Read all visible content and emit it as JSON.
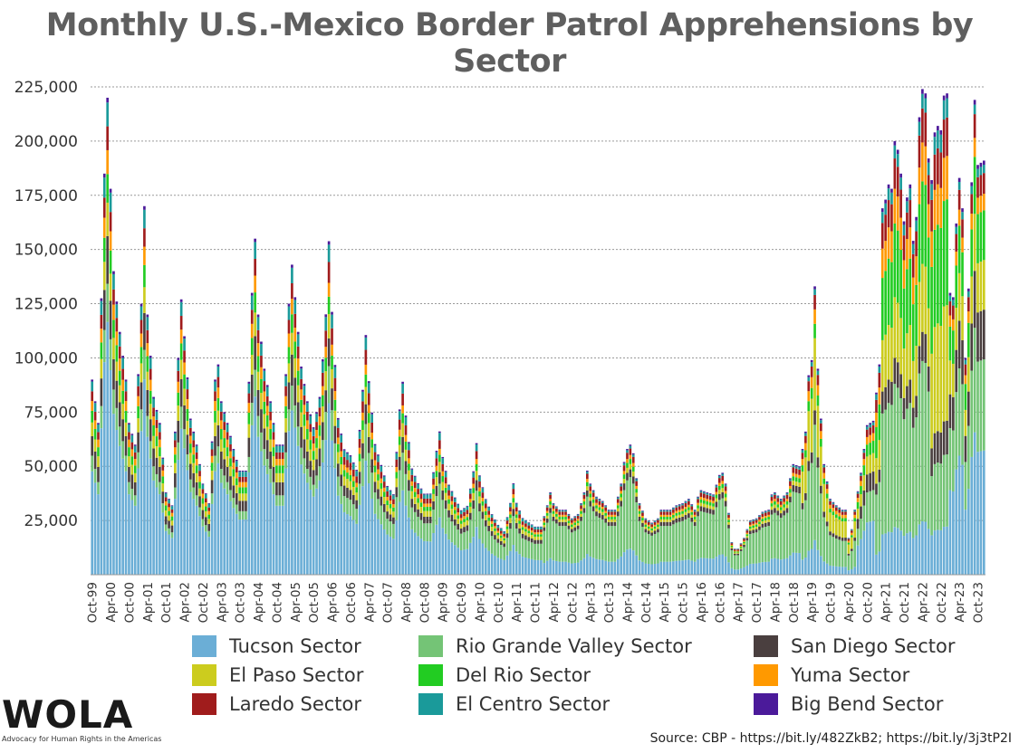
{
  "title": "Monthly U.S.-Mexico Border Patrol Apprehensions by Sector",
  "source": "Source: CBP - https://bit.ly/482ZkB2; https://bit.ly/3j3tP2I",
  "logo": {
    "text": "WOLA",
    "subtitle": "Advocacy for Human Rights in the Americas"
  },
  "chart_data": {
    "type": "bar",
    "stacked": true,
    "ylim": [
      0,
      225000
    ],
    "yticks": [
      25000,
      50000,
      75000,
      100000,
      125000,
      150000,
      175000,
      200000,
      225000
    ],
    "ytick_labels": [
      "25,000",
      "50,000",
      "75,000",
      "100,000",
      "125,000",
      "150,000",
      "175,000",
      "200,000",
      "225,000"
    ],
    "grid": true,
    "legend_position": "bottom",
    "x_start": "Oct-99",
    "x_end": "Dec-23",
    "xtick_labels": [
      "Oct-99",
      "Apr-00",
      "Oct-00",
      "Apr-01",
      "Oct-01",
      "Apr-02",
      "Oct-02",
      "Apr-03",
      "Oct-03",
      "Apr-04",
      "Oct-04",
      "Apr-05",
      "Oct-05",
      "Apr-06",
      "Oct-06",
      "Apr-07",
      "Oct-07",
      "Apr-08",
      "Oct-08",
      "Apr-09",
      "Oct-09",
      "Apr-10",
      "Oct-10",
      "Apr-11",
      "Oct-11",
      "Apr-12",
      "Oct-12",
      "Apr-13",
      "Oct-13",
      "Apr-14",
      "Oct-14",
      "Apr-15",
      "Oct-15",
      "Apr-16",
      "Oct-16",
      "Apr-17",
      "Oct-17",
      "Apr-18",
      "Oct-18",
      "Apr-19",
      "Oct-19",
      "Apr-20",
      "Oct-20",
      "Apr-21",
      "Oct-21",
      "Apr-22",
      "Oct-22",
      "Apr-23",
      "Oct-23"
    ],
    "series": [
      {
        "name": "Tucson Sector",
        "color": "#6baed6"
      },
      {
        "name": "Rio Grande Valley Sector",
        "color": "#74c476"
      },
      {
        "name": "San Diego Sector",
        "color": "#4a3f3f"
      },
      {
        "name": "El Paso Sector",
        "color": "#cccc1e"
      },
      {
        "name": "Del Rio Sector",
        "color": "#22cc22"
      },
      {
        "name": "Yuma Sector",
        "color": "#ff9900"
      },
      {
        "name": "Laredo Sector",
        "color": "#a01c1c"
      },
      {
        "name": "El Centro Sector",
        "color": "#1a9a9a"
      },
      {
        "name": "Big Bend Sector",
        "color": "#4b1a9a"
      }
    ],
    "stack_order": [
      "Tucson Sector",
      "Rio Grande Valley Sector",
      "San Diego Sector",
      "El Paso Sector",
      "Del Rio Sector",
      "Yuma Sector",
      "Laredo Sector",
      "El Centro Sector",
      "Big Bend Sector"
    ],
    "totals_anchors": [
      [
        "Oct-99",
        90000
      ],
      [
        "Dec-99",
        70000
      ],
      [
        "Feb-00",
        185000
      ],
      [
        "Mar-00",
        220000
      ],
      [
        "Apr-00",
        178000
      ],
      [
        "May-00",
        140000
      ],
      [
        "Jul-00",
        112000
      ],
      [
        "Sep-00",
        90000
      ],
      [
        "Oct-00",
        70000
      ],
      [
        "Dec-00",
        60000
      ],
      [
        "Feb-01",
        125000
      ],
      [
        "Mar-01",
        170000
      ],
      [
        "Apr-01",
        120000
      ],
      [
        "Jun-01",
        82000
      ],
      [
        "Aug-01",
        70000
      ],
      [
        "Oct-01",
        38000
      ],
      [
        "Dec-01",
        32000
      ],
      [
        "Feb-02",
        100000
      ],
      [
        "Mar-02",
        127000
      ],
      [
        "Apr-02",
        110000
      ],
      [
        "Jun-02",
        72000
      ],
      [
        "Aug-02",
        60000
      ],
      [
        "Oct-02",
        42000
      ],
      [
        "Dec-02",
        33000
      ],
      [
        "Feb-03",
        90000
      ],
      [
        "Mar-03",
        97000
      ],
      [
        "Apr-03",
        80000
      ],
      [
        "Jun-03",
        70000
      ],
      [
        "Aug-03",
        58000
      ],
      [
        "Oct-03",
        48000
      ],
      [
        "Dec-03",
        48000
      ],
      [
        "Feb-04",
        130000
      ],
      [
        "Mar-04",
        155000
      ],
      [
        "Apr-04",
        120000
      ],
      [
        "Jun-04",
        95000
      ],
      [
        "Aug-04",
        80000
      ],
      [
        "Oct-04",
        60000
      ],
      [
        "Dec-04",
        60000
      ],
      [
        "Feb-05",
        125000
      ],
      [
        "Mar-05",
        143000
      ],
      [
        "Apr-05",
        128000
      ],
      [
        "Jun-05",
        96000
      ],
      [
        "Aug-05",
        80000
      ],
      [
        "Oct-05",
        68000
      ],
      [
        "Dec-05",
        82000
      ],
      [
        "Feb-06",
        125000
      ],
      [
        "Mar-06",
        160000
      ],
      [
        "Apr-06",
        126000
      ],
      [
        "Jun-06",
        75000
      ],
      [
        "Aug-06",
        60000
      ],
      [
        "Oct-06",
        57000
      ],
      [
        "Dec-06",
        50000
      ],
      [
        "Feb-07",
        88000
      ],
      [
        "Mar-07",
        114000
      ],
      [
        "Apr-07",
        92000
      ],
      [
        "Jun-07",
        62000
      ],
      [
        "Aug-07",
        52000
      ],
      [
        "Oct-07",
        42000
      ],
      [
        "Dec-07",
        38000
      ],
      [
        "Feb-08",
        78000
      ],
      [
        "Mar-08",
        91000
      ],
      [
        "Apr-08",
        75000
      ],
      [
        "Jun-08",
        50000
      ],
      [
        "Aug-08",
        43000
      ],
      [
        "Oct-08",
        38000
      ],
      [
        "Dec-08",
        38000
      ],
      [
        "Feb-09",
        58000
      ],
      [
        "Mar-09",
        67000
      ],
      [
        "Apr-09",
        55000
      ],
      [
        "Jun-09",
        42000
      ],
      [
        "Aug-09",
        36000
      ],
      [
        "Oct-09",
        30000
      ],
      [
        "Dec-09",
        32000
      ],
      [
        "Feb-10",
        48000
      ],
      [
        "Mar-10",
        61000
      ],
      [
        "Apr-10",
        46000
      ],
      [
        "Jun-10",
        35000
      ],
      [
        "Aug-10",
        28000
      ],
      [
        "Oct-10",
        23000
      ],
      [
        "Dec-10",
        20000
      ],
      [
        "Feb-11",
        33000
      ],
      [
        "Mar-11",
        42000
      ],
      [
        "Apr-11",
        33000
      ],
      [
        "Jun-11",
        26000
      ],
      [
        "Aug-11",
        24000
      ],
      [
        "Oct-11",
        22000
      ],
      [
        "Dec-11",
        22000
      ],
      [
        "Feb-12",
        32000
      ],
      [
        "Mar-12",
        38000
      ],
      [
        "Apr-12",
        33000
      ],
      [
        "Jun-12",
        30000
      ],
      [
        "Aug-12",
        30000
      ],
      [
        "Oct-12",
        26000
      ],
      [
        "Dec-12",
        28000
      ],
      [
        "Feb-13",
        38000
      ],
      [
        "Mar-13",
        48000
      ],
      [
        "Apr-13",
        42000
      ],
      [
        "Jun-13",
        36000
      ],
      [
        "Aug-13",
        34000
      ],
      [
        "Oct-13",
        30000
      ],
      [
        "Dec-13",
        30000
      ],
      [
        "Feb-14",
        42000
      ],
      [
        "Mar-14",
        52000
      ],
      [
        "Apr-14",
        58000
      ],
      [
        "May-14",
        60000
      ],
      [
        "Jun-14",
        56000
      ],
      [
        "Aug-14",
        33000
      ],
      [
        "Oct-14",
        26000
      ],
      [
        "Dec-14",
        24000
      ],
      [
        "Feb-15",
        26000
      ],
      [
        "Mar-15",
        30000
      ],
      [
        "Apr-15",
        30000
      ],
      [
        "Jun-15",
        30000
      ],
      [
        "Aug-15",
        32000
      ],
      [
        "Oct-15",
        33000
      ],
      [
        "Dec-15",
        35000
      ],
      [
        "Feb-16",
        30000
      ],
      [
        "Mar-16",
        36000
      ],
      [
        "Apr-16",
        39000
      ],
      [
        "Jun-16",
        38000
      ],
      [
        "Aug-16",
        37000
      ],
      [
        "Oct-16",
        46000
      ],
      [
        "Nov-16",
        47000
      ],
      [
        "Dec-16",
        42000
      ],
      [
        "Feb-17",
        15000
      ],
      [
        "Mar-17",
        12000
      ],
      [
        "Apr-17",
        12000
      ],
      [
        "Jun-17",
        17000
      ],
      [
        "Aug-17",
        25000
      ],
      [
        "Oct-17",
        26000
      ],
      [
        "Dec-17",
        29000
      ],
      [
        "Feb-18",
        30000
      ],
      [
        "Mar-18",
        37000
      ],
      [
        "Apr-18",
        38000
      ],
      [
        "Jun-18",
        35000
      ],
      [
        "Aug-18",
        38000
      ],
      [
        "Oct-18",
        51000
      ],
      [
        "Dec-18",
        50000
      ],
      [
        "Feb-19",
        66000
      ],
      [
        "Mar-19",
        92000
      ],
      [
        "Apr-19",
        99000
      ],
      [
        "May-19",
        133000
      ],
      [
        "Jun-19",
        95000
      ],
      [
        "Jul-19",
        72000
      ],
      [
        "Aug-19",
        51000
      ],
      [
        "Oct-19",
        35000
      ],
      [
        "Dec-19",
        32000
      ],
      [
        "Feb-20",
        30000
      ],
      [
        "Mar-20",
        30000
      ],
      [
        "Apr-20",
        17000
      ],
      [
        "May-20",
        21000
      ],
      [
        "Jun-20",
        30000
      ],
      [
        "Aug-20",
        47000
      ],
      [
        "Oct-20",
        69000
      ],
      [
        "Dec-20",
        71000
      ],
      [
        "Feb-21",
        97000
      ],
      [
        "Mar-21",
        169000
      ],
      [
        "Apr-21",
        173000
      ],
      [
        "May-21",
        180000
      ],
      [
        "Jun-21",
        178000
      ],
      [
        "Jul-21",
        200000
      ],
      [
        "Aug-21",
        196000
      ],
      [
        "Sep-21",
        185000
      ],
      [
        "Oct-21",
        163000
      ],
      [
        "Nov-21",
        174000
      ],
      [
        "Dec-21",
        180000
      ],
      [
        "Jan-22",
        154000
      ],
      [
        "Feb-22",
        165000
      ],
      [
        "Mar-22",
        211000
      ],
      [
        "Apr-22",
        224000
      ],
      [
        "May-22",
        222000
      ],
      [
        "Jun-22",
        192000
      ],
      [
        "Jul-22",
        182000
      ],
      [
        "Aug-22",
        204000
      ],
      [
        "Sep-22",
        207000
      ],
      [
        "Oct-22",
        205000
      ],
      [
        "Nov-22",
        221000
      ],
      [
        "Dec-22",
        222000
      ],
      [
        "Jan-23",
        130000
      ],
      [
        "Feb-23",
        128000
      ],
      [
        "Mar-23",
        162000
      ],
      [
        "Apr-23",
        183000
      ],
      [
        "May-23",
        169000
      ],
      [
        "Jun-23",
        100000
      ],
      [
        "Jul-23",
        132000
      ],
      [
        "Aug-23",
        181000
      ],
      [
        "Sep-23",
        219000
      ],
      [
        "Oct-23",
        189000
      ],
      [
        "Nov-23",
        190000
      ],
      [
        "Dec-23",
        191000
      ]
    ]
  }
}
